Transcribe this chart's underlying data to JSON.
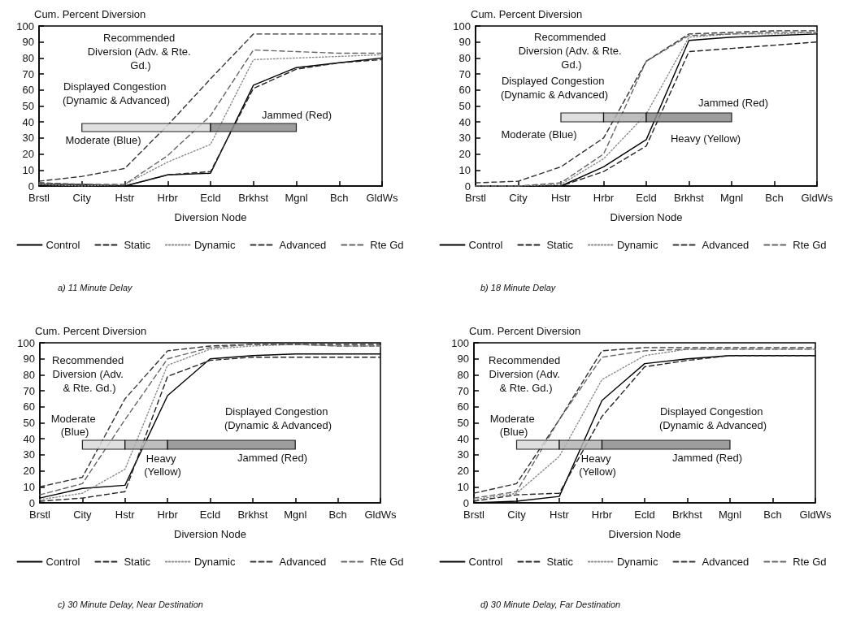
{
  "chart_data": [
    {
      "type": "line",
      "title": "a) 11 Minute Delay",
      "xlabel": "Diversion Node",
      "ylabel": "Cum. Percent Diversion",
      "categories": [
        "Brstl",
        "City",
        "Hstr",
        "Hrbr",
        "Ecld",
        "Brkhst",
        "Mgnl",
        "Bch",
        "GldWs"
      ],
      "ylim": [
        0,
        100
      ],
      "yticks": [
        0,
        10,
        20,
        30,
        40,
        50,
        60,
        70,
        80,
        90,
        100
      ],
      "legend": "bottom",
      "marker": "none",
      "series": [
        {
          "name": "Control",
          "color": "#000000",
          "line_style": "solid",
          "values": [
            1,
            1,
            0,
            7,
            8,
            63,
            74,
            77,
            80
          ]
        },
        {
          "name": "Static",
          "color": "#222222",
          "line_style": "dashed",
          "values": [
            2,
            1,
            0,
            7,
            9,
            61,
            73,
            77,
            79
          ]
        },
        {
          "name": "Dynamic",
          "color": "#888888",
          "line_style": "dotted",
          "values": [
            1,
            0,
            1,
            15,
            26,
            79,
            80,
            81,
            82
          ]
        },
        {
          "name": "Advanced",
          "color": "#333333",
          "line_style": "dashed",
          "values": [
            3,
            6,
            11,
            38,
            67,
            95,
            95,
            95,
            95
          ]
        },
        {
          "name": "Rte Gd",
          "color": "#666666",
          "line_style": "dashed",
          "values": [
            2,
            1,
            1,
            19,
            44,
            85,
            84,
            83,
            83
          ]
        }
      ],
      "bands": [
        {
          "axis": "x",
          "from": "City",
          "to": "Ecld",
          "label": "Moderate (Blue)",
          "color": "#d9d9d9"
        },
        {
          "axis": "x",
          "from": "Ecld",
          "to": "Mgnl",
          "label": "Jammed (Red)",
          "color": "#8c8c8c"
        }
      ],
      "annotations": [
        "Recommended Diversion (Adv. & Rte. Gd.)",
        "Displayed Congestion (Dynamic & Advanced)"
      ]
    },
    {
      "type": "line",
      "title": "b) 18 Minute Delay",
      "xlabel": "Diversion Node",
      "ylabel": "Cum. Percent Diversion",
      "categories": [
        "Brstl",
        "City",
        "Hstr",
        "Hrbr",
        "Ecld",
        "Brkhst",
        "Mgnl",
        "Bch",
        "GldWs"
      ],
      "ylim": [
        0,
        100
      ],
      "yticks": [
        0,
        10,
        20,
        30,
        40,
        50,
        60,
        70,
        80,
        90,
        100
      ],
      "legend": "bottom",
      "marker": "none",
      "series": [
        {
          "name": "Control",
          "color": "#000000",
          "line_style": "solid",
          "values": [
            0,
            0,
            0,
            12,
            29,
            91,
            93,
            94,
            95
          ]
        },
        {
          "name": "Static",
          "color": "#222222",
          "line_style": "dashed",
          "values": [
            0,
            0,
            0,
            9,
            25,
            84,
            86,
            88,
            90
          ]
        },
        {
          "name": "Dynamic",
          "color": "#888888",
          "line_style": "dotted",
          "values": [
            0,
            0,
            1,
            17,
            45,
            93,
            95,
            95,
            96
          ]
        },
        {
          "name": "Advanced",
          "color": "#333333",
          "line_style": "dashed",
          "values": [
            2,
            3,
            12,
            30,
            78,
            95,
            96,
            97,
            97
          ]
        },
        {
          "name": "Rte Gd",
          "color": "#666666",
          "line_style": "dashed",
          "values": [
            0,
            0,
            2,
            20,
            78,
            94,
            95,
            96,
            96
          ]
        }
      ],
      "bands": [
        {
          "axis": "x",
          "from": "Hstr",
          "to": "Hrbr",
          "label": "Moderate (Blue)",
          "color": "#d9d9d9"
        },
        {
          "axis": "x",
          "from": "Hrbr",
          "to": "Ecld",
          "label": "Heavy (Yellow)",
          "color": "#b3b3b3"
        },
        {
          "axis": "x",
          "from": "Ecld",
          "to": "Mgnl",
          "label": "Jammed (Red)",
          "color": "#8c8c8c"
        }
      ],
      "annotations": [
        "Recommended Diversion (Adv. & Rte. Gd.)",
        "Displayed Congestion (Dynamic & Advanced)"
      ]
    },
    {
      "type": "line",
      "title": "c) 30 Minute Delay, Near Destination",
      "xlabel": "Diversion Node",
      "ylabel": "Cum. Percent Diversion",
      "categories": [
        "Brstl",
        "City",
        "Hstr",
        "Hrbr",
        "Ecld",
        "Brkhst",
        "Mgnl",
        "Bch",
        "GldWs"
      ],
      "ylim": [
        0,
        100
      ],
      "yticks": [
        0,
        10,
        20,
        30,
        40,
        50,
        60,
        70,
        80,
        90,
        100
      ],
      "legend": "bottom",
      "marker": "none",
      "series": [
        {
          "name": "Control",
          "color": "#000000",
          "line_style": "solid",
          "values": [
            3,
            9,
            11,
            67,
            90,
            92,
            93,
            93,
            93
          ]
        },
        {
          "name": "Static",
          "color": "#222222",
          "line_style": "dashed",
          "values": [
            1,
            3,
            7,
            79,
            89,
            91,
            91,
            91,
            91
          ]
        },
        {
          "name": "Dynamic",
          "color": "#888888",
          "line_style": "dotted",
          "values": [
            2,
            6,
            21,
            86,
            96,
            98,
            99,
            98,
            98
          ]
        },
        {
          "name": "Advanced",
          "color": "#333333",
          "line_style": "dashed",
          "values": [
            10,
            16,
            65,
            95,
            98,
            99,
            99,
            99,
            99
          ]
        },
        {
          "name": "Rte Gd",
          "color": "#666666",
          "line_style": "dashed",
          "values": [
            5,
            12,
            52,
            90,
            97,
            99,
            99,
            98,
            98
          ]
        }
      ],
      "bands": [
        {
          "axis": "x",
          "from": "City",
          "to": "Hstr",
          "label": "Moderate (Blue)",
          "color": "#d9d9d9"
        },
        {
          "axis": "x",
          "from": "Hstr",
          "to": "Hrbr",
          "label": "Heavy (Yellow)",
          "color": "#b3b3b3"
        },
        {
          "axis": "x",
          "from": "Hrbr",
          "to": "Mgnl",
          "label": "Jammed (Red)",
          "color": "#8c8c8c"
        }
      ],
      "annotations": [
        "Recommended Diversion (Adv. & Rte. Gd.)",
        "Displayed Congestion (Dynamic & Advanced)"
      ]
    },
    {
      "type": "line",
      "title": "d) 30 Minute Delay, Far Destination",
      "xlabel": "Diversion Node",
      "ylabel": "Cum. Percent Diversion",
      "categories": [
        "Brstl",
        "City",
        "Hstr",
        "Hrbr",
        "Ecld",
        "Brkhst",
        "Mgnl",
        "Bch",
        "GldWs"
      ],
      "ylim": [
        0,
        100
      ],
      "yticks": [
        0,
        10,
        20,
        30,
        40,
        50,
        60,
        70,
        80,
        90,
        100
      ],
      "legend": "bottom",
      "marker": "none",
      "series": [
        {
          "name": "Control",
          "color": "#000000",
          "line_style": "solid",
          "values": [
            0,
            1,
            4,
            64,
            87,
            90,
            92,
            92,
            92
          ]
        },
        {
          "name": "Static",
          "color": "#222222",
          "line_style": "dashed",
          "values": [
            1,
            5,
            6,
            54,
            85,
            89,
            92,
            92,
            92
          ]
        },
        {
          "name": "Dynamic",
          "color": "#888888",
          "line_style": "dotted",
          "values": [
            2,
            6,
            29,
            77,
            92,
            96,
            96,
            96,
            96
          ]
        },
        {
          "name": "Advanced",
          "color": "#333333",
          "line_style": "dashed",
          "values": [
            6,
            12,
            52,
            95,
            97,
            97,
            97,
            97,
            97
          ]
        },
        {
          "name": "Rte Gd",
          "color": "#666666",
          "line_style": "dashed",
          "values": [
            3,
            7,
            52,
            91,
            95,
            96,
            96,
            96,
            96
          ]
        }
      ],
      "bands": [
        {
          "axis": "x",
          "from": "City",
          "to": "Hstr",
          "label": "Moderate (Blue)",
          "color": "#d9d9d9"
        },
        {
          "axis": "x",
          "from": "Hstr",
          "to": "Hrbr",
          "label": "Heavy (Yellow)",
          "color": "#b3b3b3"
        },
        {
          "axis": "x",
          "from": "Hrbr",
          "to": "Mgnl",
          "label": "Jammed (Red)",
          "color": "#8c8c8c"
        }
      ],
      "annotations": [
        "Recommended Diversion (Adv. & Rte. Gd.)",
        "Displayed Congestion (Dynamic & Advanced)"
      ]
    }
  ]
}
